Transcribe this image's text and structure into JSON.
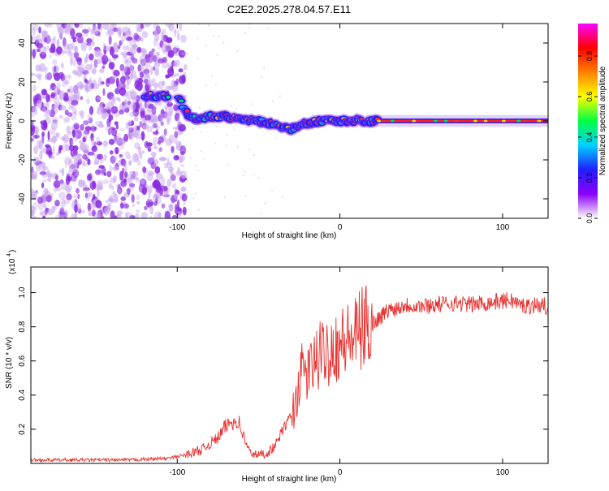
{
  "figure_title": "C2E2.2025.278.04.57.E11",
  "colors": {
    "series": "#e8312f",
    "axis": "#000000"
  },
  "chart_data": [
    {
      "type": "heatmap",
      "title": "C2E2.2025.278.04.57.E11",
      "xlabel": "Height of straight line (km)",
      "ylabel": "Frequency (Hz)",
      "xlim": [
        -190,
        128
      ],
      "ylim": [
        -50,
        50
      ],
      "x_ticks": [
        -100,
        0,
        100
      ],
      "y_ticks": [
        -40,
        -20,
        0,
        20,
        40
      ],
      "colorbar": {
        "label": "Normalized spectral amplitude",
        "range": [
          0,
          0.96
        ],
        "ticks": [
          "0.0",
          "0.2",
          "0.4",
          "0.6",
          "0.8"
        ],
        "colors": [
          "#ffffff",
          "#8b00ff",
          "#2020ff",
          "#00d0ff",
          "#00ff40",
          "#ffff00",
          "#ff8000",
          "#ff0000",
          "#ff00ff"
        ]
      },
      "signal_ridge": {
        "x": [
          -120,
          -100,
          -95,
          -90,
          -80,
          -70,
          -60,
          -50,
          -40,
          -30,
          -20,
          -10,
          0,
          20,
          40,
          60,
          80,
          100,
          128
        ],
        "y": [
          13,
          13,
          5,
          1,
          2,
          2,
          1,
          0,
          -2,
          -4,
          -1,
          0,
          0,
          0,
          0,
          0,
          0,
          0,
          0
        ]
      },
      "noise_region": [
        -190,
        -95
      ]
    },
    {
      "type": "line",
      "xlabel": "Height of straight line (km)",
      "ylabel": "SNR (10 * v/v)",
      "scale_label": "(x10",
      "scale_exp": "4",
      "xlim": [
        -190,
        128
      ],
      "ylim": [
        0,
        1.15
      ],
      "x_ticks": [
        -100,
        0,
        100
      ],
      "y_ticks": [
        "0.2",
        "0.4",
        "0.6",
        "0.8",
        "1.0"
      ],
      "series": [
        {
          "name": "SNR",
          "x": [
            -190,
            -160,
            -130,
            -105,
            -95,
            -85,
            -75,
            -70,
            -65,
            -62,
            -60,
            -57,
            -55,
            -50,
            -45,
            -40,
            -35,
            -30,
            -27,
            -25,
            -22,
            -20,
            -15,
            -10,
            -5,
            0,
            5,
            10,
            15,
            20,
            25,
            30,
            35,
            40,
            50,
            60,
            70,
            80,
            90,
            100,
            105,
            110,
            115,
            120,
            128
          ],
          "y": [
            0.02,
            0.02,
            0.02,
            0.03,
            0.05,
            0.08,
            0.15,
            0.22,
            0.25,
            0.24,
            0.18,
            0.1,
            0.06,
            0.05,
            0.06,
            0.1,
            0.2,
            0.28,
            0.35,
            0.5,
            0.55,
            0.52,
            0.6,
            0.65,
            0.68,
            0.7,
            0.72,
            0.75,
            0.8,
            0.82,
            0.86,
            0.9,
            0.91,
            0.93,
            0.92,
            0.93,
            0.94,
            0.93,
            0.94,
            0.95,
            0.96,
            0.93,
            0.92,
            0.93,
            0.92
          ]
        }
      ]
    }
  ]
}
